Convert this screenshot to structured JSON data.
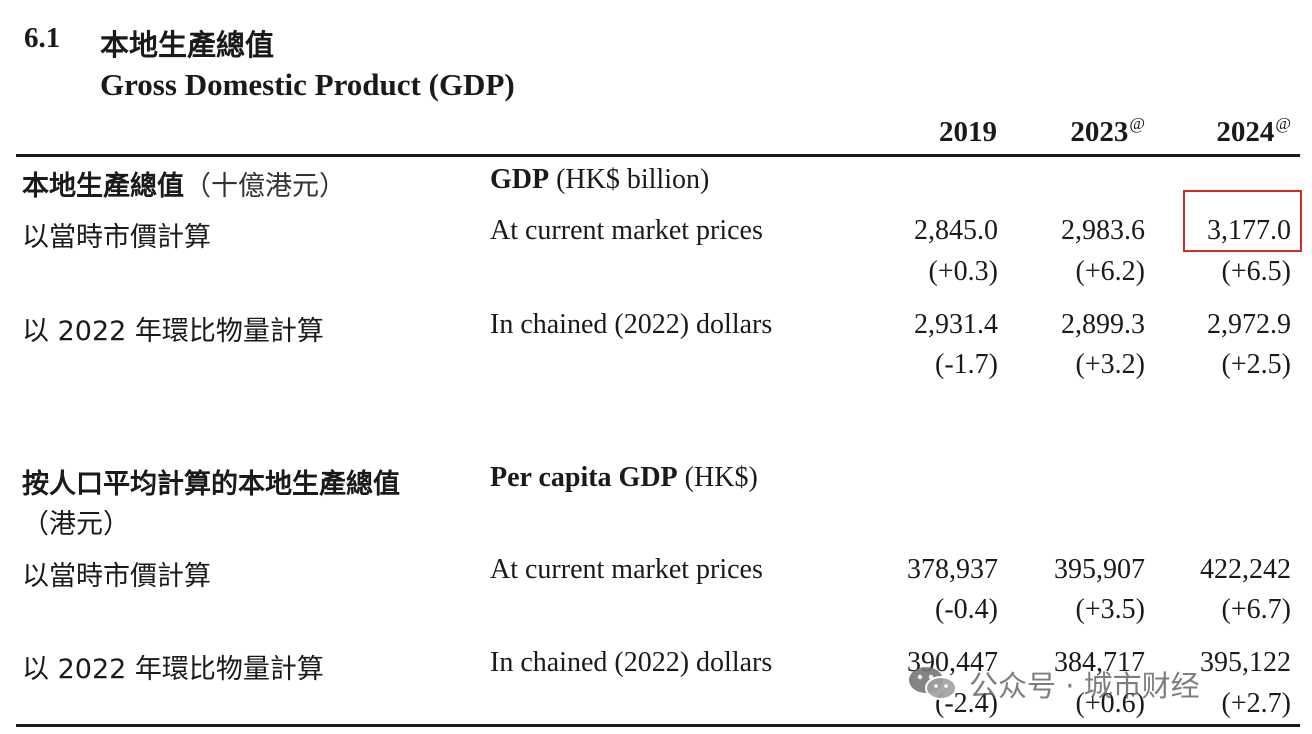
{
  "header": {
    "section_number": "6.1",
    "title_cn": "本地生產總值",
    "title_en": "Gross Domestic Product (GDP)"
  },
  "columns": [
    {
      "year": "2019",
      "mark": ""
    },
    {
      "year": "2023",
      "mark": "@"
    },
    {
      "year": "2024",
      "mark": "@"
    }
  ],
  "gdp": {
    "heading_cn": "本地生產總值",
    "heading_cn_unit": "（十億港元）",
    "heading_en_bold": "GDP",
    "heading_en_unit": " (HK$ billion)",
    "rows": [
      {
        "label_cn": "以當時市價計算",
        "label_en": "At current market prices",
        "values": [
          "2,845.0",
          "2,983.6",
          "3,177.0"
        ],
        "changes": [
          "(+0.3)",
          "(+6.2)",
          "(+6.5)"
        ]
      },
      {
        "label_cn": "以 2022 年環比物量計算",
        "label_en": "In chained (2022) dollars",
        "values": [
          "2,931.4",
          "2,899.3",
          "2,972.9"
        ],
        "changes": [
          "(-1.7)",
          "(+3.2)",
          "(+2.5)"
        ]
      }
    ]
  },
  "per_capita": {
    "heading_cn": "按人口平均計算的本地生產總值",
    "heading_cn_unit": "（港元）",
    "heading_en_bold": "Per capita GDP",
    "heading_en_unit": " (HK$)",
    "rows": [
      {
        "label_cn": "以當時市價計算",
        "label_en": "At current market prices",
        "values": [
          "378,937",
          "395,907",
          "422,242"
        ],
        "changes": [
          "(-0.4)",
          "(+3.5)",
          "(+6.7)"
        ]
      },
      {
        "label_cn": "以 2022 年環比物量計算",
        "label_en": "In chained (2022) dollars",
        "values": [
          "390,447",
          "384,717",
          "395,122"
        ],
        "changes": [
          "(-2.4)",
          "(+0.6)",
          "(+2.7)"
        ]
      }
    ]
  },
  "highlight_color": "#c9302c",
  "watermark": {
    "icon": "wechat-icon",
    "text": "公众号 · 城市财经"
  }
}
